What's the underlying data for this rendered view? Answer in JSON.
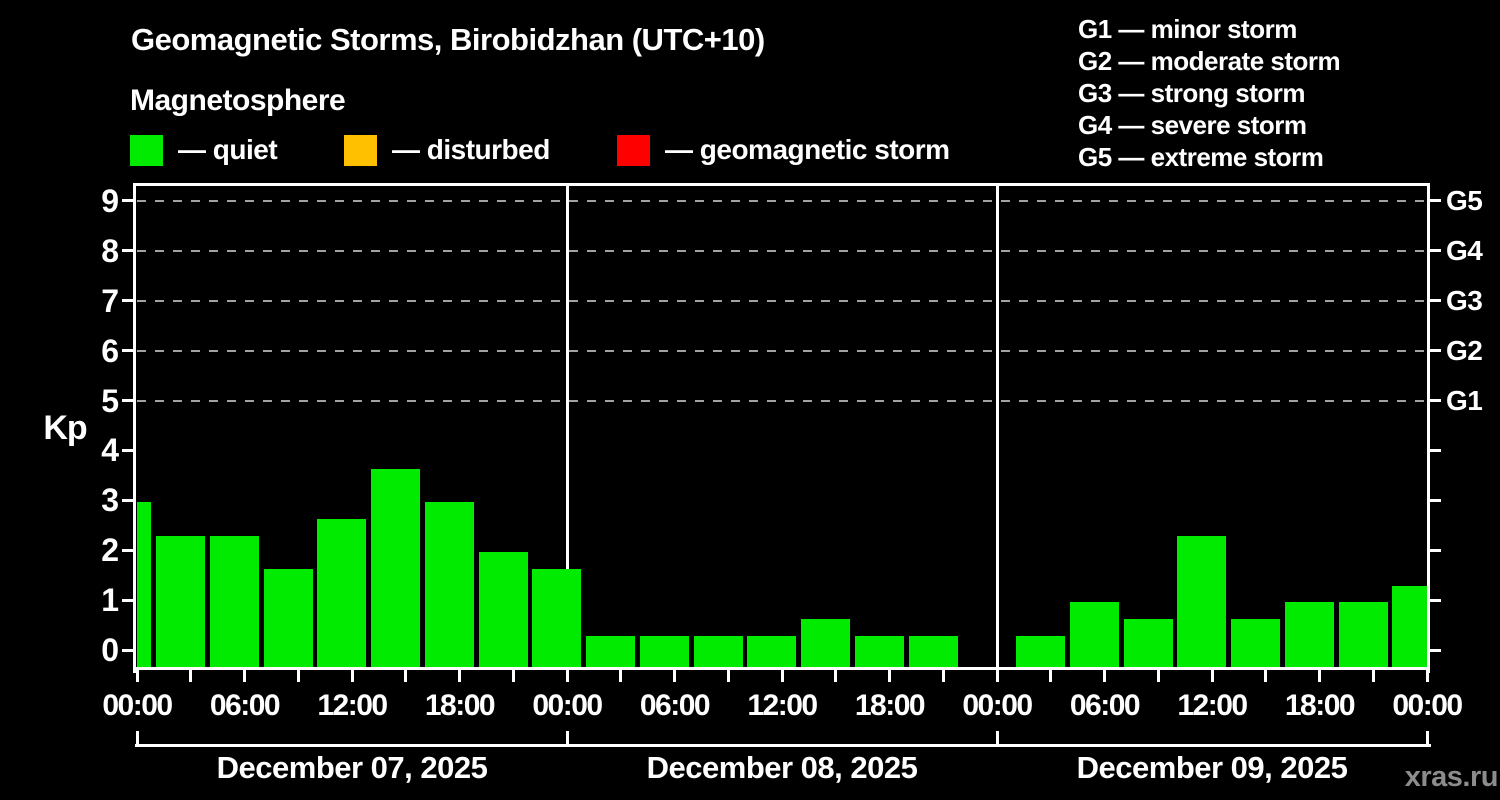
{
  "header": {
    "title": "Geomagnetic Storms, Birobidzhan (UTC+10)",
    "subtitle": "Magnetosphere"
  },
  "legend": {
    "items": [
      {
        "name": "quiet",
        "label": "— quiet",
        "color": "#00EB00"
      },
      {
        "name": "disturbed",
        "label": "— disturbed",
        "color": "#FFC000"
      },
      {
        "name": "geomagnetic-storm",
        "label": "— geomagnetic storm",
        "color": "#FF0000"
      }
    ]
  },
  "g_scale_legend": {
    "items": [
      {
        "code": "G1",
        "label": "G1 — minor storm"
      },
      {
        "code": "G2",
        "label": "G2 — moderate storm"
      },
      {
        "code": "G3",
        "label": "G3 — strong storm"
      },
      {
        "code": "G4",
        "label": "G4 — severe storm"
      },
      {
        "code": "G5",
        "label": "G5 — extreme storm"
      }
    ]
  },
  "watermark": "xras.ru",
  "chart_data": {
    "type": "bar",
    "title": "Geomagnetic Storms, Birobidzhan (UTC+10)",
    "ylabel": "Kp",
    "ylim": [
      0,
      9
    ],
    "y_ticks": [
      0,
      1,
      2,
      3,
      4,
      5,
      6,
      7,
      8,
      9
    ],
    "grid": "horizontal dashed gray lines at Kp 5,6,7,8,9 only",
    "right_axis": {
      "labels": [
        "G1",
        "G2",
        "G3",
        "G4",
        "G5"
      ],
      "kp_positions": [
        5,
        6,
        7,
        8,
        9
      ]
    },
    "x_interval_hours": 3,
    "x_tick_labels": [
      "00:00",
      "06:00",
      "12:00",
      "18:00",
      "00:00",
      "06:00",
      "12:00",
      "18:00",
      "00:00",
      "06:00",
      "12:00",
      "18:00",
      "00:00"
    ],
    "leading_partial_bar_kp": 3.0,
    "days": [
      {
        "date": "December 07, 2025",
        "kp_values": [
          2.33,
          2.33,
          1.67,
          2.67,
          3.67,
          3.0,
          2.0,
          1.67
        ]
      },
      {
        "date": "December 08, 2025",
        "kp_values": [
          0.33,
          0.33,
          0.33,
          0.33,
          0.67,
          0.33,
          0.33,
          null
        ]
      },
      {
        "date": "December 09, 2025",
        "kp_values": [
          0.33,
          1.0,
          0.67,
          2.33,
          0.67,
          1.0,
          1.0,
          1.33
        ]
      }
    ],
    "color_rules": {
      "quiet_below_kp": 4,
      "disturbed_kp_range": [
        4,
        5
      ],
      "storm_at_or_above_kp": 5
    }
  }
}
